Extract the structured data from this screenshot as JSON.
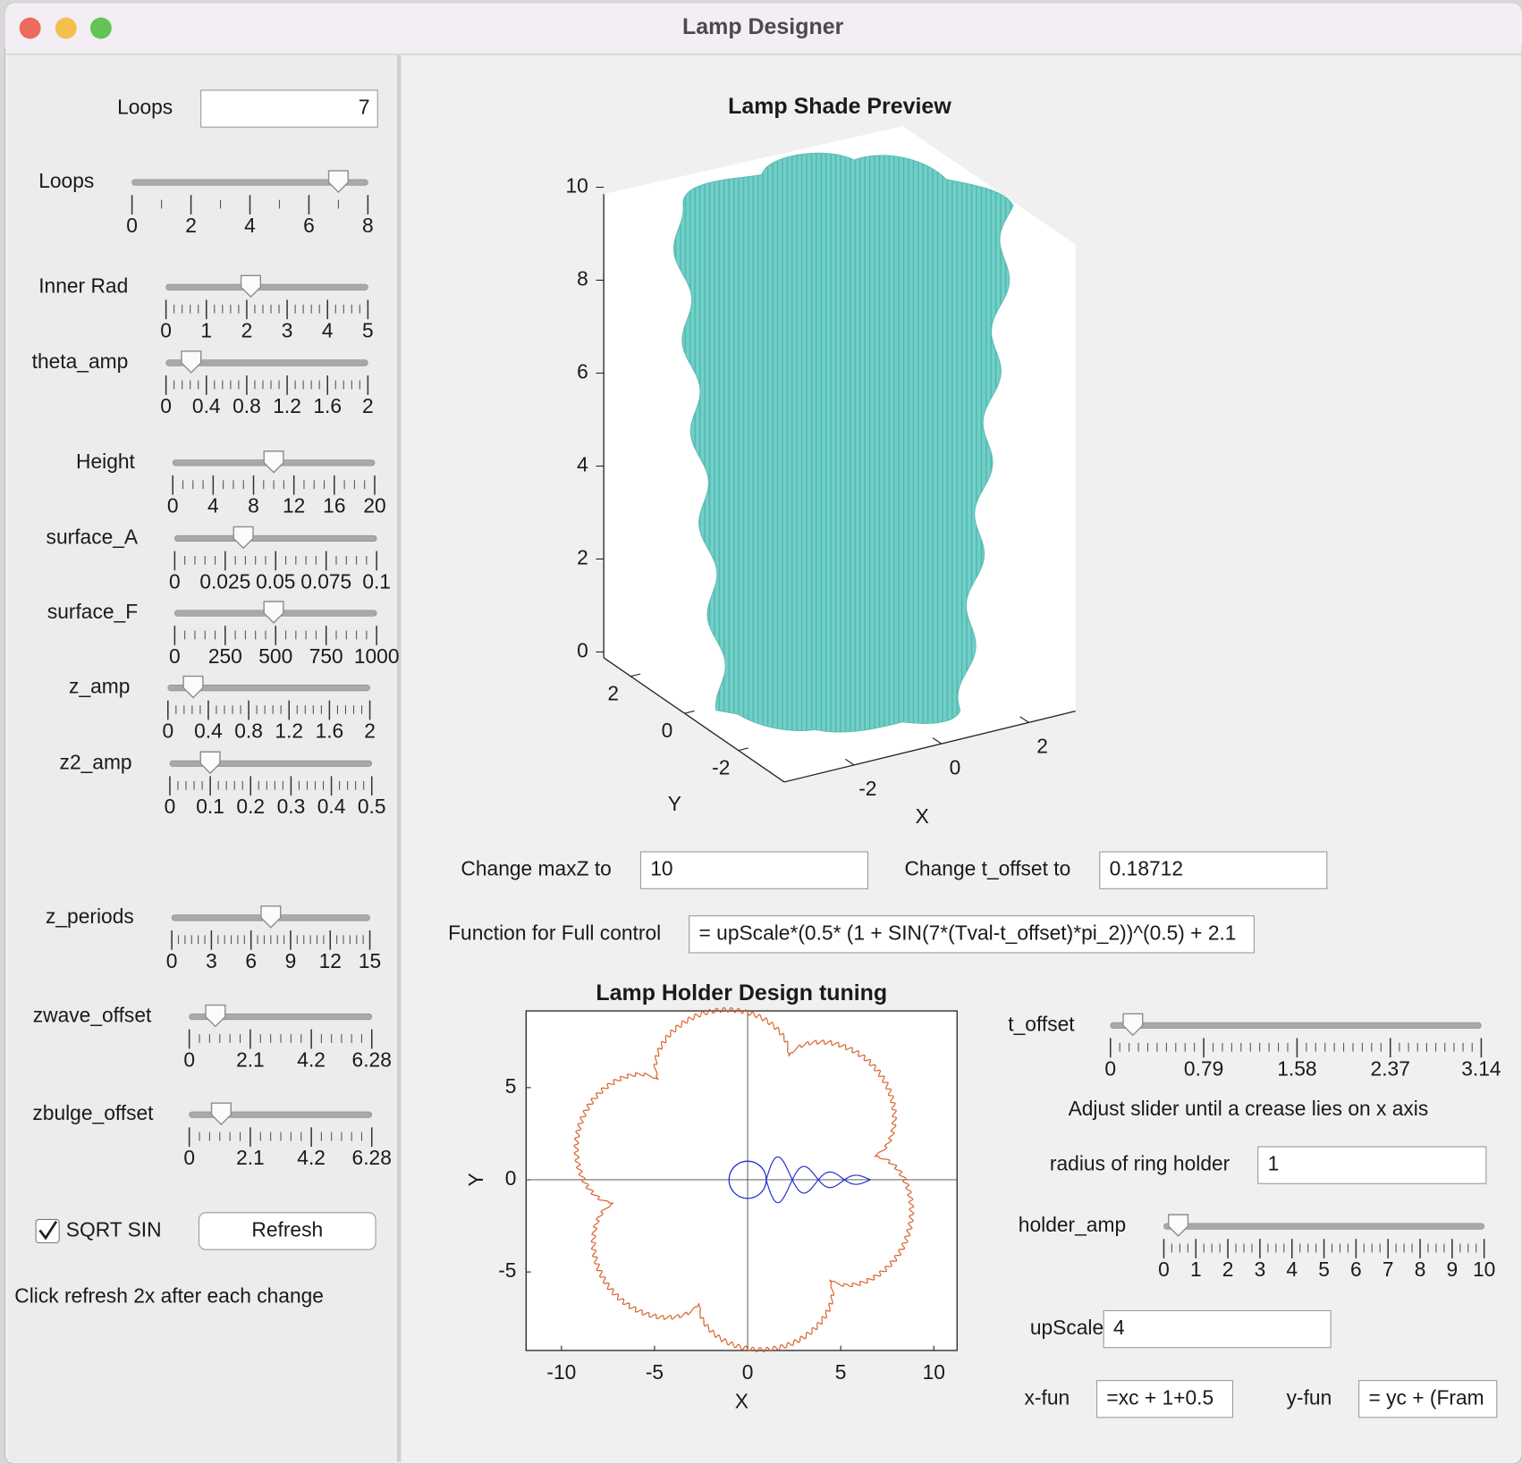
{
  "window": {
    "title": "Lamp Designer"
  },
  "sliders": [
    {
      "label": "Loops",
      "ticks": [
        0,
        2,
        4,
        6,
        8
      ],
      "value": 7
    },
    {
      "label": "Inner Rad",
      "ticks": [
        0,
        1,
        2,
        3,
        4,
        5
      ],
      "value": 2.1
    },
    {
      "label": "theta_amp",
      "ticks": [
        0,
        0.4,
        0.8,
        1.2,
        1.6,
        2
      ],
      "value": 0.25
    },
    {
      "label": "Height",
      "ticks": [
        0,
        4,
        8,
        12,
        16,
        20
      ],
      "value": 10
    },
    {
      "label": "surface_A",
      "ticks": [
        0,
        0.025,
        0.05,
        0.075,
        0.1
      ],
      "value": 0.034
    },
    {
      "label": "surface_F",
      "ticks": [
        0,
        250,
        500,
        750,
        1000
      ],
      "value": 490
    },
    {
      "label": "z_amp",
      "ticks": [
        0,
        0.4,
        0.8,
        1.2,
        1.6,
        2
      ],
      "value": 0.25
    },
    {
      "label": "z2_amp",
      "ticks": [
        0,
        0.1,
        0.2,
        0.3,
        0.4,
        0.5
      ],
      "value": 0.1
    },
    {
      "label": "z_periods",
      "ticks": [
        0,
        3,
        6,
        9,
        12,
        15
      ],
      "value": 7.5
    },
    {
      "label": "zwave_offset",
      "ticks": [
        0,
        2.1,
        4.2,
        6.28
      ],
      "value": 0.9
    },
    {
      "label": "zbulge_offset",
      "ticks": [
        0,
        2.1,
        4.2,
        6.28
      ],
      "value": 1.1
    },
    {
      "label": "t_offset",
      "ticks": [
        0,
        0.79,
        1.58,
        2.37,
        3.14
      ],
      "value": 0.19
    },
    {
      "label": "holder_amp",
      "ticks": [
        0,
        1,
        2,
        3,
        4,
        5,
        6,
        7,
        8,
        9,
        10
      ],
      "value": 0.45
    }
  ],
  "fields": [
    {
      "label": "Loops",
      "value": 7
    },
    {
      "label": "Change maxZ to",
      "value": 10
    },
    {
      "label": "Change t_offset to",
      "value": 0.18712
    },
    {
      "label": "Function for Full control",
      "value": "= upScale*(0.5* (1 + SIN(7*(Tval-t_offset)*pi_2))^(0.5) + 2.1"
    },
    {
      "label": "radius of ring holder",
      "value": 1
    },
    {
      "label": "upScale",
      "value": 4
    },
    {
      "label": "x-fun",
      "value": "=xc + 1+0.5"
    },
    {
      "label": "y-fun",
      "value": "= yc + (Fram"
    }
  ],
  "checkbox": {
    "label": "SQRT SIN",
    "checked": true
  },
  "refresh_button": "Refresh",
  "hint": "Click refresh 2x after each change",
  "note": "Adjust slider until a crease lies on x axis",
  "preview": {
    "title": "Lamp Shade Preview",
    "zlim": [
      0,
      10
    ],
    "zticks": [
      0,
      2,
      4,
      6,
      8,
      10
    ],
    "ylim": [
      3.0,
      -3.7
    ],
    "yticks": [
      2,
      0,
      -2
    ],
    "xlim": [
      -3.6,
      3.07
    ],
    "xticks": [
      -2,
      0,
      2
    ],
    "xlabel": "X",
    "ylabel": "Y"
  },
  "holder_plot": {
    "title": "Lamp Holder Design tuning",
    "xlim": [
      -11.9,
      11.25
    ],
    "ylim": [
      -9.26,
      9.16
    ],
    "xticks": [
      -10,
      -5,
      0,
      5,
      10
    ],
    "yticks": [
      -5,
      0,
      5
    ],
    "xlabel": "X",
    "ylabel": "Y"
  }
}
